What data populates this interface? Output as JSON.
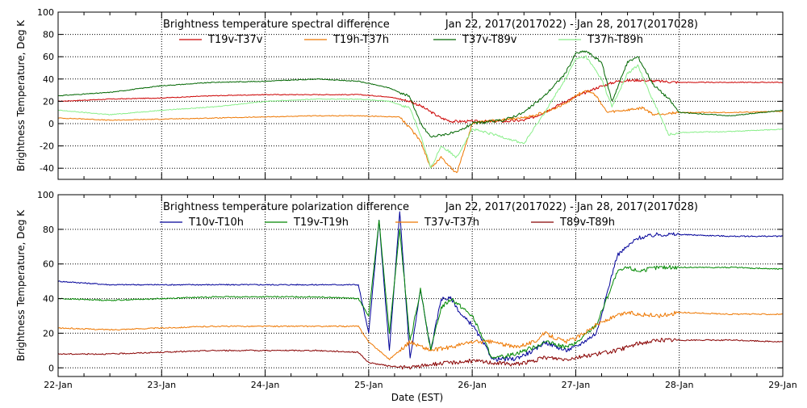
{
  "chart_data": [
    {
      "type": "line",
      "title": "Brightness temperature spectral difference",
      "date_range": "Jan 22, 2017(2017022) - Jan 28, 2017(2017028)",
      "ylabel": "Brightness Temperature, Deg K",
      "xlabel": "",
      "ylim": [
        -50,
        100
      ],
      "yticks": [
        -40,
        -20,
        0,
        20,
        40,
        60,
        80,
        100
      ],
      "xlim": [
        "2017-01-22",
        "2017-01-29"
      ],
      "grid": true,
      "legend": "top",
      "series": [
        {
          "name": "T19v-T37v",
          "color": "#cc0000",
          "x": [
            0,
            0.5,
            1.0,
            1.5,
            2.0,
            2.5,
            2.9,
            3.2,
            3.4,
            3.5,
            3.7,
            3.8,
            4.0,
            4.3,
            4.5,
            4.6,
            4.8,
            4.9,
            5.2,
            5.4,
            5.6,
            5.8,
            6.0,
            6.5,
            7.0
          ],
          "y": [
            20,
            22,
            23,
            25,
            26,
            26,
            26,
            24,
            20,
            16,
            5,
            2,
            2,
            2,
            3,
            6,
            15,
            20,
            32,
            38,
            39,
            38,
            37,
            37,
            37
          ]
        },
        {
          "name": "T19h-T37h",
          "color": "#ee7700",
          "x": [
            0,
            0.3,
            0.5,
            1.0,
            1.5,
            2.0,
            2.5,
            2.9,
            3.3,
            3.5,
            3.6,
            3.7,
            3.85,
            4.0,
            4.3,
            4.5,
            4.7,
            4.9,
            5.0,
            5.1,
            5.2,
            5.3,
            5.5,
            5.65,
            5.75,
            6.0,
            6.5,
            7.0
          ],
          "y": [
            5,
            4,
            3,
            4,
            5,
            6,
            7,
            7,
            6,
            -15,
            -40,
            -30,
            -45,
            0,
            4,
            5,
            10,
            18,
            25,
            30,
            25,
            10,
            12,
            14,
            8,
            10,
            10,
            11
          ]
        },
        {
          "name": "T37v-T89v",
          "color": "#006600",
          "x": [
            0,
            0.5,
            1.0,
            1.5,
            2.0,
            2.5,
            2.9,
            3.2,
            3.4,
            3.5,
            3.6,
            3.7,
            3.85,
            4.0,
            4.3,
            4.5,
            4.7,
            4.9,
            5.0,
            5.1,
            5.25,
            5.35,
            5.5,
            5.6,
            5.75,
            5.9,
            6.0,
            6.5,
            7.0
          ],
          "y": [
            25,
            28,
            34,
            37,
            38,
            40,
            38,
            32,
            24,
            0,
            -12,
            -10,
            -8,
            0,
            3,
            10,
            25,
            45,
            63,
            65,
            55,
            20,
            55,
            60,
            35,
            22,
            10,
            7,
            12
          ]
        },
        {
          "name": "T37h-T89h",
          "color": "#88ee88",
          "x": [
            0,
            0.5,
            1.0,
            1.5,
            2.0,
            2.5,
            2.9,
            3.2,
            3.4,
            3.5,
            3.6,
            3.7,
            3.85,
            4.0,
            4.3,
            4.5,
            4.7,
            4.9,
            5.0,
            5.1,
            5.25,
            5.35,
            5.5,
            5.6,
            5.75,
            5.9,
            6.0,
            6.5,
            7.0
          ],
          "y": [
            12,
            8,
            12,
            15,
            20,
            22,
            22,
            20,
            14,
            -10,
            -40,
            -20,
            -30,
            -5,
            -12,
            -18,
            10,
            40,
            58,
            60,
            40,
            15,
            45,
            52,
            20,
            -10,
            -8,
            -7,
            -5
          ]
        }
      ]
    },
    {
      "type": "line",
      "title": "Brightness temperature polarization difference",
      "date_range": "Jan 22, 2017(2017022) - Jan 28, 2017(2017028)",
      "ylabel": "Brightness Temperature, Deg K",
      "xlabel": "Date (EST)",
      "ylim": [
        -5,
        100
      ],
      "yticks": [
        0,
        20,
        40,
        60,
        80,
        100
      ],
      "xlim": [
        "2017-01-22",
        "2017-01-29"
      ],
      "xticks": [
        "22-Jan",
        "23-Jan",
        "24-Jan",
        "25-Jan",
        "26-Jan",
        "27-Jan",
        "28-Jan",
        "29-Jan"
      ],
      "grid": true,
      "legend": "top",
      "series": [
        {
          "name": "T10v-T10h",
          "color": "#000099",
          "x": [
            0,
            0.5,
            1.0,
            1.5,
            2.0,
            2.5,
            2.9,
            3.0,
            3.1,
            3.2,
            3.3,
            3.4,
            3.5,
            3.6,
            3.7,
            3.8,
            3.9,
            4.0,
            4.2,
            4.4,
            4.6,
            4.7,
            4.9,
            5.0,
            5.2,
            5.4,
            5.5,
            5.6,
            5.8,
            6.0,
            6.5,
            7.0
          ],
          "y": [
            50,
            48,
            48,
            48,
            48,
            48,
            48,
            20,
            85,
            10,
            90,
            5,
            45,
            10,
            40,
            40,
            30,
            25,
            5,
            5,
            10,
            15,
            10,
            12,
            20,
            65,
            70,
            75,
            77,
            77,
            76,
            76
          ]
        },
        {
          "name": "T19v-T19h",
          "color": "#008800",
          "x": [
            0,
            0.5,
            1.0,
            1.5,
            2.0,
            2.5,
            2.9,
            3.0,
            3.1,
            3.2,
            3.3,
            3.4,
            3.5,
            3.6,
            3.7,
            3.8,
            3.9,
            4.0,
            4.2,
            4.4,
            4.6,
            4.7,
            4.9,
            5.0,
            5.2,
            5.4,
            5.5,
            5.6,
            5.8,
            6.0,
            6.5,
            7.0
          ],
          "y": [
            40,
            39,
            40,
            41,
            41,
            41,
            40,
            30,
            85,
            20,
            80,
            15,
            45,
            10,
            35,
            40,
            35,
            30,
            5,
            8,
            12,
            15,
            12,
            14,
            25,
            55,
            58,
            56,
            58,
            58,
            58,
            57
          ]
        },
        {
          "name": "T37v-T37h",
          "color": "#ee7700",
          "x": [
            0,
            0.5,
            1.0,
            1.5,
            2.0,
            2.5,
            2.9,
            3.0,
            3.2,
            3.4,
            3.6,
            3.8,
            4.0,
            4.2,
            4.4,
            4.6,
            4.7,
            4.9,
            5.0,
            5.2,
            5.4,
            5.5,
            5.6,
            5.8,
            6.0,
            6.5,
            7.0
          ],
          "y": [
            23,
            22,
            23,
            24,
            24,
            24,
            24,
            15,
            5,
            15,
            10,
            12,
            15,
            15,
            12,
            15,
            20,
            15,
            17,
            25,
            30,
            32,
            31,
            30,
            32,
            31,
            31
          ]
        },
        {
          "name": "T89v-T89h",
          "color": "#880000",
          "x": [
            0,
            0.5,
            1.0,
            1.5,
            2.0,
            2.5,
            2.9,
            3.0,
            3.2,
            3.4,
            3.6,
            3.8,
            4.0,
            4.2,
            4.4,
            4.6,
            4.7,
            4.9,
            5.0,
            5.2,
            5.4,
            5.5,
            5.6,
            5.8,
            6.0,
            6.5,
            7.0
          ],
          "y": [
            8,
            8,
            9,
            10,
            10,
            10,
            9,
            3,
            1,
            0,
            2,
            3,
            4,
            3,
            2,
            4,
            6,
            5,
            6,
            8,
            10,
            12,
            14,
            16,
            16,
            16,
            15
          ]
        }
      ]
    }
  ]
}
